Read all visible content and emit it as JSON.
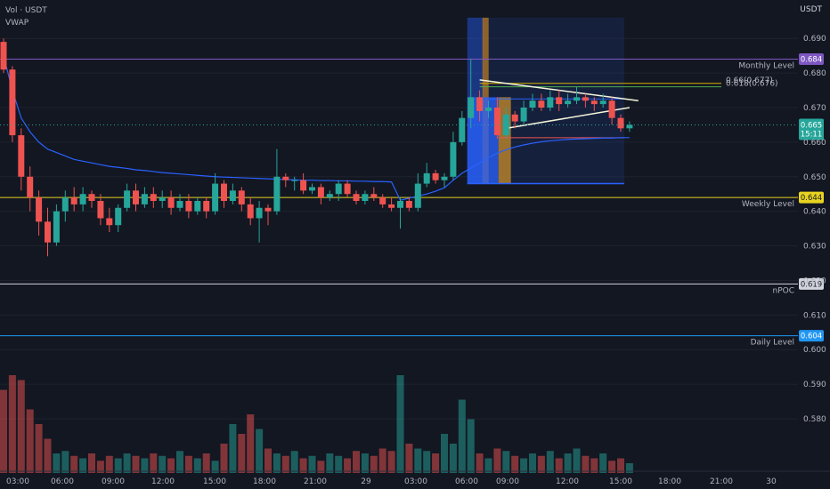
{
  "legend": {
    "volume": "Vol · USDT",
    "vwap": "VWAP"
  },
  "price_unit": "USDT",
  "colors": {
    "bg": "#131722",
    "up": "#26a69a",
    "down": "#ef5350",
    "vwap": "#2962ff",
    "monthly": "#7e57c2",
    "weekly": "#e8d320",
    "npoc": "#d1d4dc",
    "daily": "#2196f3"
  },
  "chart_data": {
    "type": "candlestick",
    "ylim": [
      0.571,
      0.697
    ],
    "y_ticks": [
      "0.690",
      "0.680",
      "0.670",
      "0.660",
      "0.650",
      "0.640",
      "0.630",
      "0.620",
      "0.610",
      "0.600",
      "0.590",
      "0.580"
    ],
    "x_ticks": [
      "03:00",
      "06:00",
      "09:00",
      "12:00",
      "15:00",
      "18:00",
      "21:00",
      "29",
      "03:00",
      "06:00",
      "09:00",
      "12:00",
      "15:00",
      "18:00",
      "21:00",
      "30"
    ],
    "levels": [
      {
        "name": "Monthly Level",
        "value": 0.684,
        "label": "0.684",
        "color": "#7e57c2"
      },
      {
        "name": "Weekly Level",
        "value": 0.644,
        "label": "0.644",
        "color": "#e8d320"
      },
      {
        "name": "nPOC",
        "value": 0.619,
        "label": "0.619",
        "color": "#d1d4dc"
      },
      {
        "name": "Daily Level",
        "value": 0.604,
        "label": "0.604",
        "color": "#2196f3"
      }
    ],
    "current_price": {
      "label": "0.665",
      "countdown": "15:11"
    },
    "fib_labels": [
      {
        "text": "0.66(0.677)",
        "value": 0.677
      },
      {
        "text": "0.618(0.676)",
        "value": 0.676
      }
    ],
    "candles": [
      [
        0.689,
        0.681,
        0.69,
        0.68
      ],
      [
        0.681,
        0.662,
        0.682,
        0.66
      ],
      [
        0.662,
        0.65,
        0.664,
        0.646
      ],
      [
        0.65,
        0.644,
        0.653,
        0.64
      ],
      [
        0.644,
        0.637,
        0.646,
        0.633
      ],
      [
        0.637,
        0.631,
        0.641,
        0.627
      ],
      [
        0.631,
        0.64,
        0.642,
        0.63
      ],
      [
        0.64,
        0.644,
        0.646,
        0.637
      ],
      [
        0.644,
        0.642,
        0.647,
        0.64
      ],
      [
        0.642,
        0.645,
        0.647,
        0.64
      ],
      [
        0.645,
        0.643,
        0.646,
        0.641
      ],
      [
        0.643,
        0.638,
        0.645,
        0.636
      ],
      [
        0.638,
        0.636,
        0.641,
        0.634
      ],
      [
        0.636,
        0.641,
        0.642,
        0.634
      ],
      [
        0.641,
        0.646,
        0.648,
        0.64
      ],
      [
        0.646,
        0.642,
        0.648,
        0.64
      ],
      [
        0.642,
        0.645,
        0.647,
        0.641
      ],
      [
        0.645,
        0.643,
        0.647,
        0.641
      ],
      [
        0.643,
        0.644,
        0.646,
        0.641
      ],
      [
        0.644,
        0.641,
        0.646,
        0.639
      ],
      [
        0.641,
        0.643,
        0.645,
        0.64
      ],
      [
        0.643,
        0.64,
        0.645,
        0.638
      ],
      [
        0.64,
        0.643,
        0.644,
        0.639
      ],
      [
        0.643,
        0.64,
        0.644,
        0.638
      ],
      [
        0.64,
        0.648,
        0.651,
        0.639
      ],
      [
        0.648,
        0.643,
        0.649,
        0.641
      ],
      [
        0.643,
        0.646,
        0.648,
        0.642
      ],
      [
        0.646,
        0.642,
        0.647,
        0.64
      ],
      [
        0.642,
        0.638,
        0.644,
        0.636
      ],
      [
        0.638,
        0.641,
        0.643,
        0.631
      ],
      [
        0.641,
        0.64,
        0.642,
        0.636
      ],
      [
        0.64,
        0.65,
        0.658,
        0.639
      ],
      [
        0.65,
        0.649,
        0.651,
        0.647
      ],
      [
        0.649,
        0.649,
        0.65,
        0.646
      ],
      [
        0.649,
        0.646,
        0.651,
        0.645
      ],
      [
        0.646,
        0.647,
        0.648,
        0.645
      ],
      [
        0.647,
        0.644,
        0.648,
        0.642
      ],
      [
        0.644,
        0.645,
        0.646,
        0.643
      ],
      [
        0.645,
        0.648,
        0.649,
        0.643
      ],
      [
        0.648,
        0.645,
        0.649,
        0.644
      ],
      [
        0.645,
        0.643,
        0.646,
        0.642
      ],
      [
        0.643,
        0.645,
        0.646,
        0.642
      ],
      [
        0.645,
        0.644,
        0.647,
        0.643
      ],
      [
        0.644,
        0.642,
        0.645,
        0.641
      ],
      [
        0.642,
        0.641,
        0.644,
        0.64
      ],
      [
        0.641,
        0.643,
        0.644,
        0.635
      ],
      [
        0.643,
        0.641,
        0.644,
        0.64
      ],
      [
        0.641,
        0.648,
        0.651,
        0.64
      ],
      [
        0.648,
        0.651,
        0.654,
        0.647
      ],
      [
        0.651,
        0.649,
        0.652,
        0.648
      ],
      [
        0.649,
        0.65,
        0.651,
        0.647
      ],
      [
        0.65,
        0.66,
        0.663,
        0.649
      ],
      [
        0.66,
        0.667,
        0.669,
        0.659
      ],
      [
        0.667,
        0.673,
        0.684,
        0.664
      ],
      [
        0.673,
        0.669,
        0.675,
        0.666
      ],
      [
        0.669,
        0.67,
        0.672,
        0.667
      ],
      [
        0.67,
        0.662,
        0.673,
        0.661
      ],
      [
        0.662,
        0.668,
        0.67,
        0.661
      ],
      [
        0.668,
        0.666,
        0.669,
        0.664
      ],
      [
        0.666,
        0.67,
        0.672,
        0.665
      ],
      [
        0.67,
        0.672,
        0.674,
        0.669
      ],
      [
        0.672,
        0.67,
        0.674,
        0.669
      ],
      [
        0.67,
        0.673,
        0.675,
        0.669
      ],
      [
        0.673,
        0.671,
        0.675,
        0.669
      ],
      [
        0.671,
        0.672,
        0.674,
        0.67
      ],
      [
        0.672,
        0.673,
        0.676,
        0.671
      ],
      [
        0.673,
        0.672,
        0.674,
        0.67
      ],
      [
        0.672,
        0.671,
        0.673,
        0.669
      ],
      [
        0.671,
        0.672,
        0.674,
        0.67
      ],
      [
        0.672,
        0.667,
        0.673,
        0.665
      ],
      [
        0.667,
        0.664,
        0.668,
        0.663
      ],
      [
        0.664,
        0.665,
        0.666,
        0.663
      ]
    ],
    "volume": [
      34,
      40,
      38,
      26,
      20,
      14,
      8,
      9,
      7,
      6,
      8,
      5,
      7,
      6,
      8,
      7,
      6,
      8,
      7,
      6,
      9,
      7,
      6,
      8,
      5,
      12,
      20,
      16,
      24,
      18,
      10,
      8,
      7,
      9,
      6,
      7,
      5,
      8,
      7,
      6,
      9,
      8,
      7,
      10,
      9,
      40,
      12,
      10,
      9,
      8,
      16,
      12,
      30,
      22,
      8,
      6,
      10,
      9,
      7,
      6,
      8,
      7,
      9,
      6,
      8,
      10,
      7,
      6,
      8,
      5,
      6,
      4
    ],
    "vwap": [
      0.685,
      0.675,
      0.667,
      0.663,
      0.66,
      0.658,
      0.657,
      0.656,
      0.655,
      0.6545,
      0.654,
      0.6535,
      0.653,
      0.6527,
      0.6524,
      0.652,
      0.6518,
      0.6515,
      0.6512,
      0.651,
      0.6508,
      0.6506,
      0.6504,
      0.6502,
      0.65,
      0.6499,
      0.6498,
      0.6497,
      0.6496,
      0.6495,
      0.6494,
      0.6493,
      0.6492,
      0.6491,
      0.649,
      0.649,
      0.6489,
      0.6489,
      0.6488,
      0.6488,
      0.6487,
      0.6487,
      0.6486,
      0.6486,
      0.6485,
      0.6432,
      0.6438,
      0.6444,
      0.645,
      0.6458,
      0.6468,
      0.649,
      0.651,
      0.6525,
      0.654,
      0.6555,
      0.6568,
      0.6578,
      0.6586,
      0.6592,
      0.6597,
      0.6601,
      0.6604,
      0.6606,
      0.6608,
      0.6609,
      0.661,
      0.6611,
      0.6612,
      0.6612,
      0.6613,
      0.6613
    ]
  }
}
